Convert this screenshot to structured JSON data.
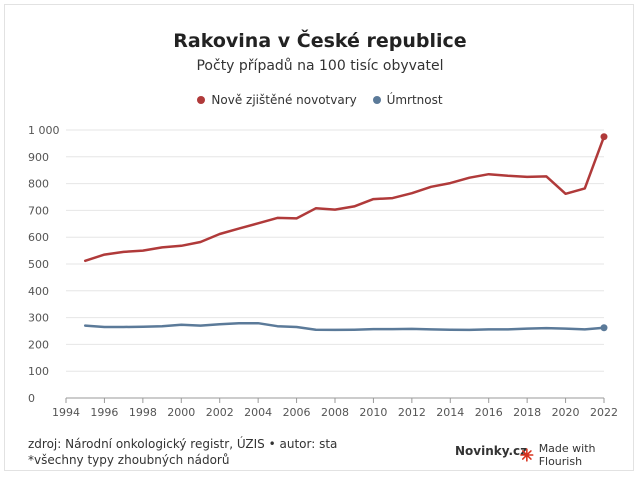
{
  "header": {
    "title": "Rakovina v České republice",
    "subtitle": "Počty případů na 100 tisíc obyvatel"
  },
  "footer": {
    "source": "zdroj: Národní onkologický registr, ÚZIS • autor: sta",
    "note": "*všechny typy zhoubných nádorů",
    "brand": "Novinky.cz",
    "flourish": "Made with Flourish"
  },
  "chart_data": {
    "type": "line",
    "title": "Rakovina v České republice",
    "subtitle": "Počty případů na 100 tisíc obyvatel",
    "xlabel": "",
    "ylabel": "",
    "xlim": [
      1994,
      2022
    ],
    "ylim": [
      0,
      1000
    ],
    "x_ticks": [
      "1994",
      "1996",
      "1998",
      "2000",
      "2002",
      "2004",
      "2006",
      "2008",
      "2010",
      "2012",
      "2014",
      "2016",
      "2018",
      "2020",
      "2022"
    ],
    "y_ticks": [
      "0",
      "100",
      "200",
      "300",
      "400",
      "500",
      "600",
      "700",
      "800",
      "900",
      "1 000"
    ],
    "grid": true,
    "legend_position": "top-center",
    "x": [
      1995,
      1996,
      1997,
      1998,
      1999,
      2000,
      2001,
      2002,
      2003,
      2004,
      2005,
      2006,
      2007,
      2008,
      2009,
      2010,
      2011,
      2012,
      2013,
      2014,
      2015,
      2016,
      2017,
      2018,
      2019,
      2020,
      2021,
      2022
    ],
    "series": [
      {
        "name": "Nově zjištěné novotvary",
        "color": "#b03a3a",
        "values": [
          512,
          535,
          545,
          550,
          562,
          568,
          582,
          612,
          632,
          652,
          672,
          670,
          708,
          703,
          715,
          742,
          746,
          764,
          788,
          802,
          822,
          835,
          829,
          825,
          827,
          762,
          782,
          975
        ]
      },
      {
        "name": "Úmrtnost",
        "color": "#5b7a99",
        "values": [
          270,
          265,
          265,
          266,
          268,
          273,
          270,
          275,
          279,
          279,
          268,
          265,
          255,
          254,
          255,
          257,
          257,
          258,
          256,
          255,
          254,
          256,
          256,
          259,
          261,
          259,
          256,
          262
        ]
      }
    ]
  }
}
